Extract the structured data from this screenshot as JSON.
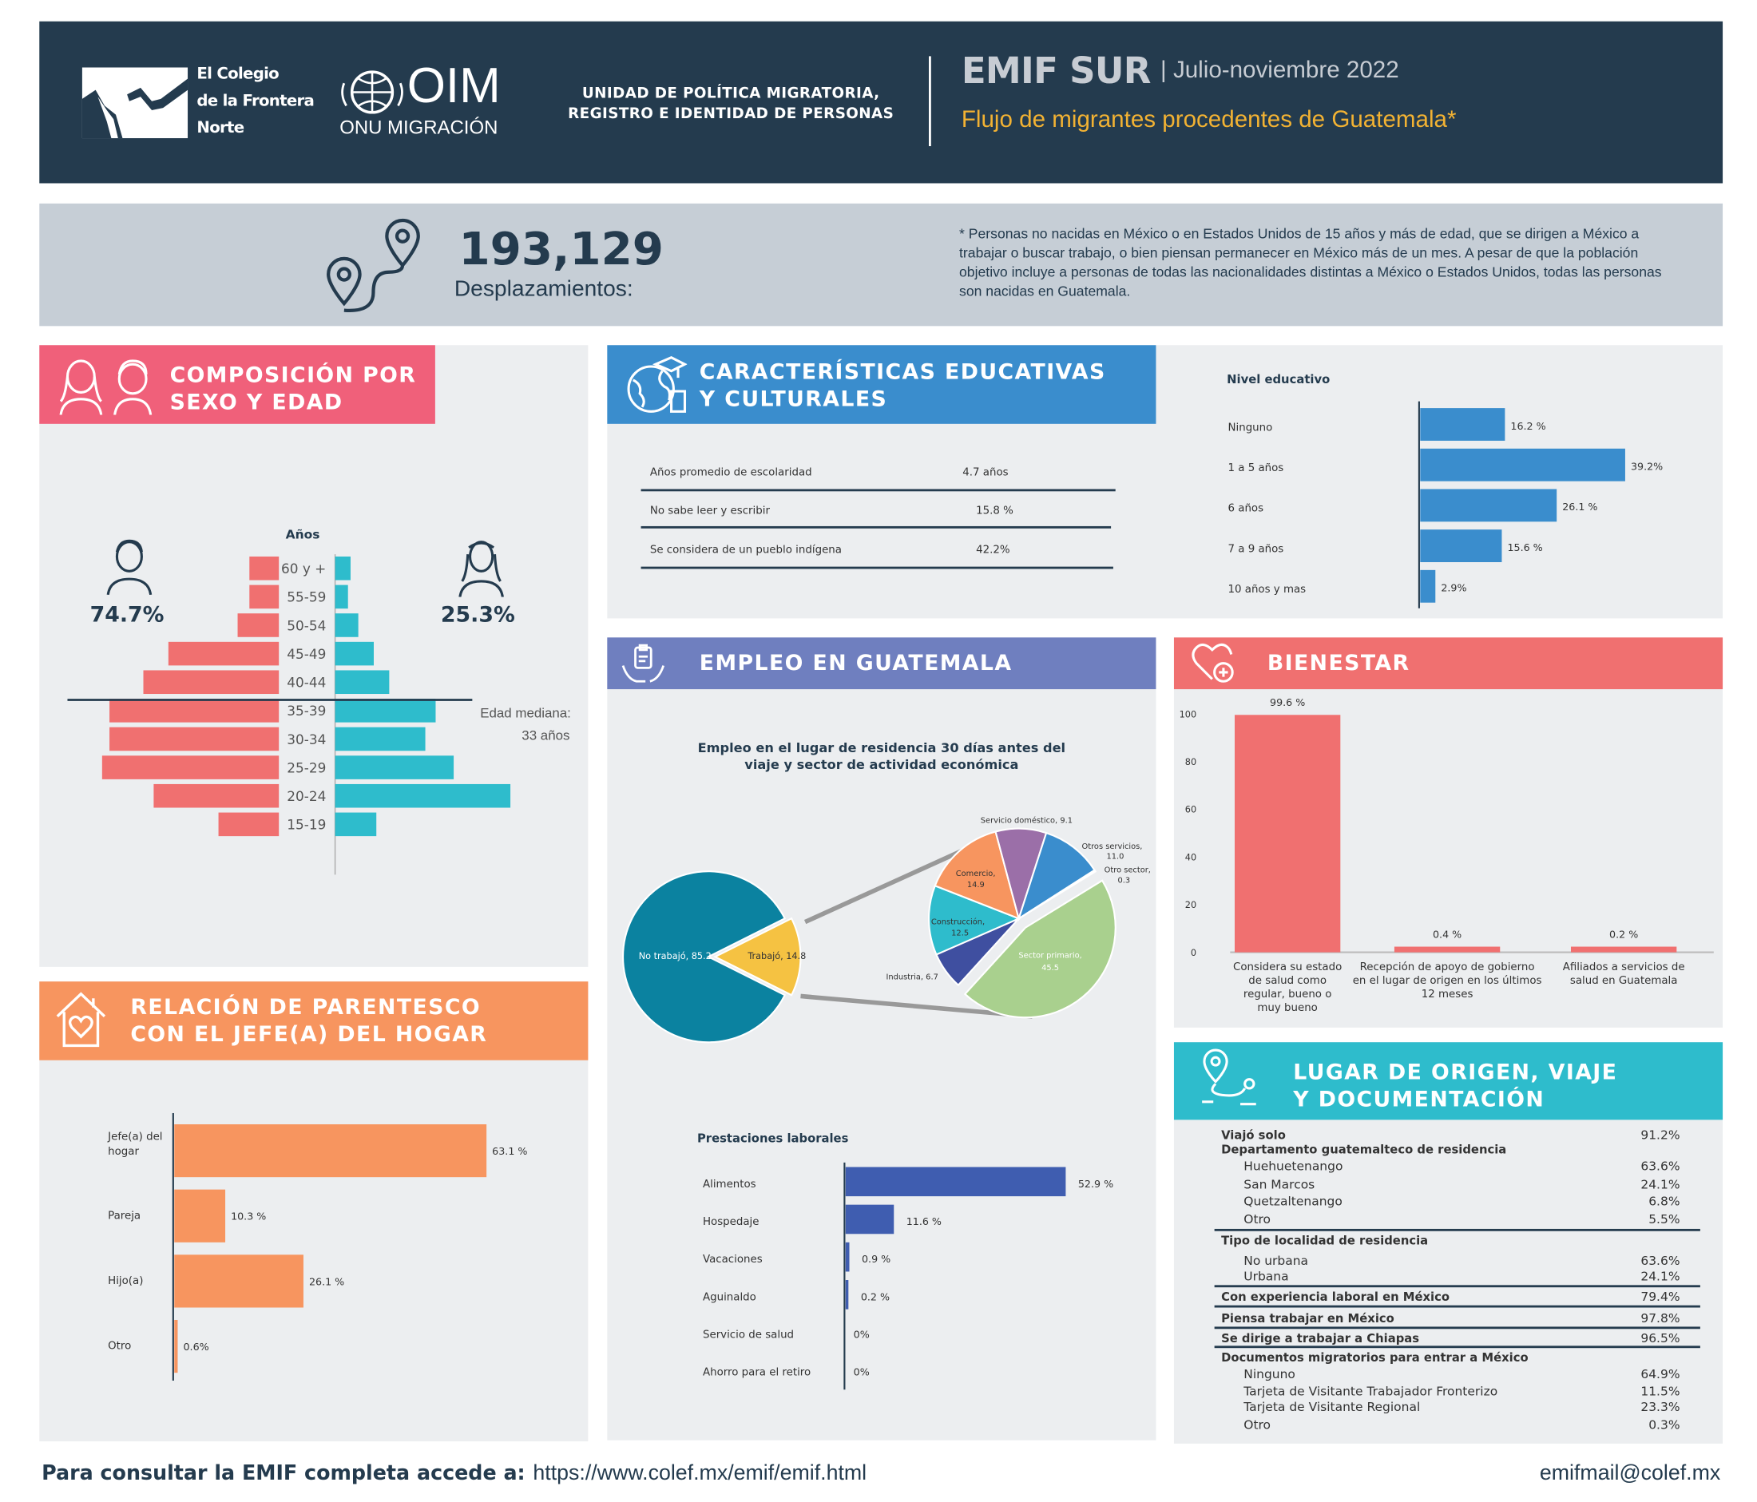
{
  "header": {
    "colef_line1": "El Colegio",
    "colef_line2": "de la Frontera",
    "colef_line3": "Norte",
    "oim_main": "OIM",
    "oim_sub": "ONU MIGRACIÓN",
    "unit_line1": "UNIDAD DE POLÍTICA MIGRATORIA,",
    "unit_line2": "REGISTRO E IDENTIDAD DE PERSONAS",
    "survey": "EMIF SUR",
    "period": "| Julio-noviembre 2022",
    "subtitle": "Flujo de migrantes procedentes de Guatemala*",
    "bg_color": "#243b4e",
    "accent_color": "#f2b233"
  },
  "summary": {
    "count": "193,129",
    "count_label": "Desplazamientos:",
    "note": "* Personas no nacidas en México o en Estados Unidos de 15 años y más de edad, que se dirigen a México a trabajar o buscar trabajo, o bien piensan permanecer en México más de un mes. A pesar de que la población objetivo incluye a personas de todas las nacionalidades distintas a México o Estados Unidos, todas las personas son nacidas en Guatemala."
  },
  "sections": {
    "sexo_edad": "COMPOSICIÓN POR SEXO Y EDAD",
    "sexo_edad_l1": "COMPOSICIÓN POR",
    "sexo_edad_l2": "SEXO Y EDAD",
    "educ_l1": "CARACTERÍSTICAS EDUCATIVAS",
    "educ_l2": "Y CULTURALES",
    "empleo": "EMPLEO EN GUATEMALA",
    "bienestar": "BIENESTAR",
    "parentesco_l1": "RELACIÓN DE PARENTESCO",
    "parentesco_l2": "CON EL JEFE(A) DEL HOGAR",
    "origen_l1": "LUGAR DE ORIGEN, VIAJE",
    "origen_l2": "Y DOCUMENTACIÓN"
  },
  "colors": {
    "pink": "#f0607a",
    "blue": "#3a8dcd",
    "purple": "#6f7fbf",
    "coral": "#f07070",
    "orange": "#f7955f",
    "teal": "#2ebccc",
    "male": "#f07070",
    "female": "#2ebccc"
  },
  "pyramid": {
    "axis_title": "Años",
    "male_pct": "74.7%",
    "female_pct": "25.3%",
    "median_label_l1": "Edad mediana:",
    "median_label_l2": "33 años"
  },
  "educ_table": [
    {
      "label": "Años promedio de escolaridad",
      "value": "4.7 años"
    },
    {
      "label": "No sabe leer y escribir",
      "value": "15.8 %"
    },
    {
      "label": "Se considera de un pueblo indígena",
      "value": "42.2%"
    }
  ],
  "footer": {
    "lead": "Para consultar la EMIF completa accede a:",
    "url": "https://www.colef.mx/emif/emif.html",
    "email": "emifmail@colef.mx"
  },
  "origen": {
    "rows": [
      {
        "label": "Viajó solo",
        "value": "91.2%",
        "bold": true
      },
      {
        "label": "Departamento guatemalteco de residencia",
        "value": "",
        "bold": true
      },
      {
        "label": "Huehuetenango",
        "value": "63.6%",
        "bold": false
      },
      {
        "label": "San Marcos",
        "value": "24.1%",
        "bold": false
      },
      {
        "label": "Quetzaltenango",
        "value": "6.8%",
        "bold": false
      },
      {
        "label": "Otro",
        "value": "5.5%",
        "bold": false
      },
      {
        "label": "Tipo de localidad de residencia",
        "value": "",
        "bold": true
      },
      {
        "label": "No urbana",
        "value": "63.6%",
        "bold": false
      },
      {
        "label": "Urbana",
        "value": "24.1%",
        "bold": false
      },
      {
        "label": "Con experiencia laboral en México",
        "value": "79.4%",
        "bold": true
      },
      {
        "label": "Piensa trabajar en México",
        "value": "97.8%",
        "bold": true
      },
      {
        "label": "Se dirige a trabajar a Chiapas",
        "value": "96.5%",
        "bold": true
      },
      {
        "label": "Documentos migratorios para entrar a México",
        "value": "",
        "bold": true
      },
      {
        "label": "Ninguno",
        "value": "64.9%",
        "bold": false
      },
      {
        "label": "Tarjeta de Visitante Trabajador Fronterizo",
        "value": "11.5%",
        "bold": false
      },
      {
        "label": "Tarjeta de Visitante Regional",
        "value": "23.3%",
        "bold": false
      },
      {
        "label": "Otro",
        "value": "0.3%",
        "bold": false
      }
    ]
  },
  "chart_data": [
    {
      "id": "piramide",
      "type": "bar",
      "title": "Años",
      "categories": [
        "60 y +",
        "55-59",
        "50-54",
        "45-49",
        "40-44",
        "35-39",
        "30-34",
        "25-29",
        "20-24",
        "15-19"
      ],
      "series": [
        {
          "name": "Hombres",
          "values": [
            2.0,
            2.0,
            2.8,
            7.5,
            9.2,
            11.5,
            11.5,
            12.0,
            8.5,
            4.1
          ]
        },
        {
          "name": "Mujeres",
          "values": [
            0.6,
            0.5,
            0.9,
            1.5,
            2.1,
            3.9,
            3.5,
            4.6,
            6.8,
            1.6
          ]
        }
      ],
      "median": 33
    },
    {
      "id": "nivel_educativo",
      "type": "bar",
      "title": "Nivel educativo",
      "categories": [
        "Ninguno",
        "1 a 5 años",
        "6 años",
        "7 a 9 años",
        "10 años y mas"
      ],
      "values": [
        16.2,
        39.2,
        26.1,
        15.6,
        2.9
      ],
      "labels": [
        "16.2 %",
        "39.2%",
        "26.1 %",
        "15.6 %",
        "2.9%"
      ]
    },
    {
      "id": "empleo_pie",
      "type": "pie",
      "title": "Empleo en el lugar de residencia 30 días antes del viaje y sector de actividad económica",
      "slices": [
        {
          "label": "No trabajó, 85.2",
          "value": 85.2
        },
        {
          "label": "Trabajó, 14.8",
          "value": 14.8
        }
      ],
      "sub_slices": [
        {
          "label": "Sector primario, 45.5",
          "value": 45.5
        },
        {
          "label": "Industria, 6.7",
          "value": 6.7
        },
        {
          "label": "Construcción, 12.5",
          "value": 12.5
        },
        {
          "label": "Comercio, 14.9",
          "value": 14.9
        },
        {
          "label": "Servicio doméstico, 9.1",
          "value": 9.1
        },
        {
          "label": "Otros servicios, 11.0",
          "value": 11.0
        },
        {
          "label": "Otro sector, 0.3",
          "value": 0.3
        }
      ]
    },
    {
      "id": "prestaciones",
      "type": "bar",
      "title": "Prestaciones laborales",
      "categories": [
        "Alimentos",
        "Hospedaje",
        "Vacaciones",
        "Aguinaldo",
        "Servicio de salud",
        "Ahorro para el retiro"
      ],
      "values": [
        52.9,
        11.6,
        0.9,
        0.2,
        0,
        0
      ],
      "labels": [
        "52.9 %",
        "11.6 %",
        "0.9 %",
        "0.2 %",
        "0%",
        "0%"
      ]
    },
    {
      "id": "bienestar",
      "type": "bar",
      "categories": [
        "Considera su estado de salud como regular, bueno o muy bueno",
        "Recepción de apoyo de gobierno en el lugar de origen en los últimos 12 meses",
        "Afiliados a servicios de salud en Guatemala"
      ],
      "values": [
        99.6,
        0.4,
        0.2
      ],
      "labels": [
        "99.6 %",
        "0.4 %",
        "0.2 %"
      ],
      "ylim": [
        0,
        100
      ],
      "yticks": [
        0,
        20,
        40,
        60,
        80,
        100
      ]
    },
    {
      "id": "parentesco",
      "type": "bar",
      "categories": [
        "Jefe(a) del hogar",
        "Pareja",
        "Hijo(a)",
        "Otro"
      ],
      "values": [
        63.1,
        10.3,
        26.1,
        0.6
      ],
      "labels": [
        "63.1 %",
        "10.3 %",
        "26.1 %",
        "0.6%"
      ]
    }
  ]
}
